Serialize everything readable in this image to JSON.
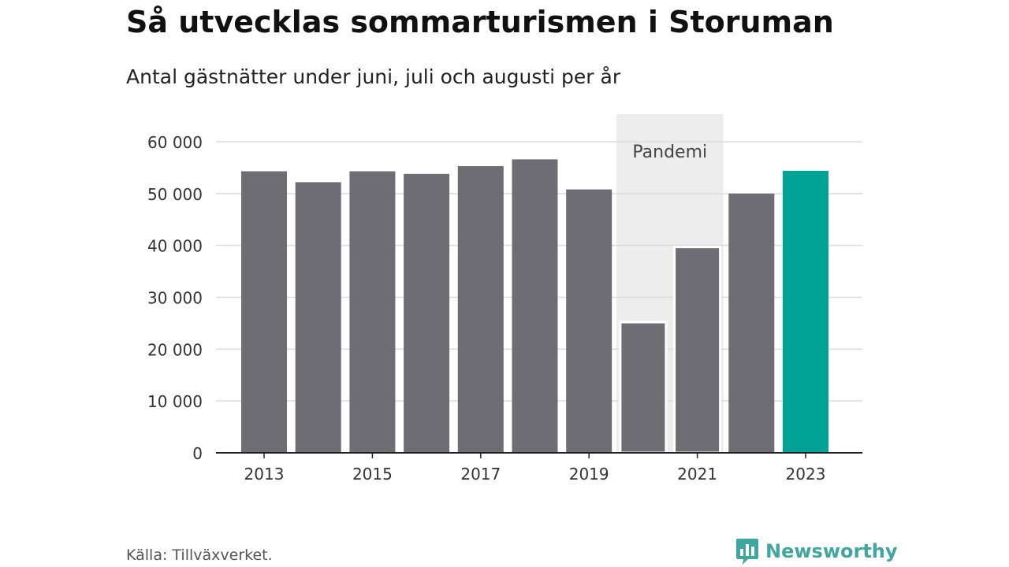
{
  "header": {
    "title": "Så utvecklas sommarturismen i Storuman",
    "subtitle": "Antal gästnätter under juni, juli och augusti per år"
  },
  "footer": {
    "source": "Källa: Tillväxverket.",
    "brand": "Newsworthy"
  },
  "colors": {
    "bar": "#6e6d74",
    "highlight": "#00a396",
    "band": "#ededed",
    "grid": "#dcdcdc",
    "axis": "#222222",
    "brand": "#3fa6a0"
  },
  "icons": {
    "logo": "newsworthy-logo-icon"
  },
  "chart_data": {
    "type": "bar",
    "title": "Så utvecklas sommarturismen i Storuman",
    "subtitle": "Antal gästnätter under juni, juli och augusti per år",
    "categories": [
      "2013",
      "2014",
      "2015",
      "2016",
      "2017",
      "2018",
      "2019",
      "2020",
      "2021",
      "2022",
      "2023"
    ],
    "values": [
      54300,
      52200,
      54300,
      53800,
      55300,
      56600,
      50800,
      25200,
      39700,
      50000,
      54400
    ],
    "highlight_category": "2023",
    "x_tick_labels": [
      "2013",
      "2015",
      "2017",
      "2019",
      "2021",
      "2023"
    ],
    "y_ticks": [
      0,
      10000,
      20000,
      30000,
      40000,
      50000,
      60000
    ],
    "y_tick_labels": [
      "0",
      "10 000",
      "20 000",
      "30 000",
      "40 000",
      "50 000",
      "60 000"
    ],
    "ylim": [
      0,
      60000
    ],
    "xlabel": "",
    "ylabel": "",
    "grid": true,
    "legend": "none",
    "annotation": {
      "label": "Pandemi",
      "from": "2020",
      "to": "2021"
    }
  }
}
